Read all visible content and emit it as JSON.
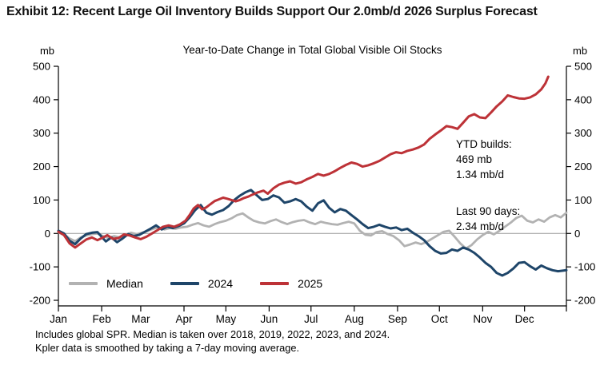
{
  "exhibit_title": "Exhibit 12: Recent Large Oil Inventory Builds Support Our 2.0mb/d 2026 Surplus Forecast",
  "chart": {
    "title": "Year-to-Date Change in Total Global Visible Oil Stocks",
    "unit_left": "mb",
    "unit_right": "mb",
    "annotation": {
      "ytd": "YTD builds:\n469 mb\n1.34 mb/d",
      "last90": "Last 90 days:\n2.34 mb/d"
    },
    "footnote_line1": "Includes global SPR. Median is taken over 2018, 2019, 2022, 2023, and 2024.",
    "footnote_line2": "Kpler data is smoothed by taking a 7-day moving average."
  },
  "chart_data": {
    "type": "line",
    "title": "Year-to-Date Change in Total Global Visible Oil Stocks",
    "xlabel": "",
    "ylabel": "mb",
    "ylim": [
      -200,
      500
    ],
    "yticks": [
      500,
      400,
      300,
      200,
      100,
      0,
      -100,
      -200
    ],
    "grid": "zero-line-only",
    "legend_position": "inside-bottom-left",
    "x_axis": {
      "unit": "day-of-year",
      "range": [
        1,
        365
      ],
      "months": [
        {
          "label": "Jan",
          "day": 1
        },
        {
          "label": "Feb",
          "day": 32
        },
        {
          "label": "Mar",
          "day": 60
        },
        {
          "label": "Apr",
          "day": 91
        },
        {
          "label": "May",
          "day": 121
        },
        {
          "label": "Jun",
          "day": 152
        },
        {
          "label": "Jul",
          "day": 182
        },
        {
          "label": "Aug",
          "day": 213
        },
        {
          "label": "Sep",
          "day": 244
        },
        {
          "label": "Oct",
          "day": 274
        },
        {
          "label": "Nov",
          "day": 305
        },
        {
          "label": "Dec",
          "day": 335
        }
      ]
    },
    "annotations": [
      "YTD builds: 469 mb (1.34 mb/d)",
      "Last 90 days: 2.34 mb/d"
    ],
    "colors": {
      "axis": "#000000",
      "zero_line": "#9a9a9a",
      "median": "#b2b2b2",
      "y2024": "#1e4569",
      "y2025": "#bd3237"
    },
    "series": [
      {
        "name": "Median",
        "color": "#b2b2b2",
        "points": [
          [
            1,
            3
          ],
          [
            5,
            -3
          ],
          [
            9,
            -15
          ],
          [
            13,
            -23
          ],
          [
            17,
            -12
          ],
          [
            21,
            -6
          ],
          [
            25,
            -2
          ],
          [
            29,
            0
          ],
          [
            33,
            -8
          ],
          [
            37,
            -14
          ],
          [
            41,
            -8
          ],
          [
            45,
            -12
          ],
          [
            49,
            -4
          ],
          [
            53,
            2
          ],
          [
            57,
            -2
          ],
          [
            61,
            2
          ],
          [
            65,
            8
          ],
          [
            69,
            14
          ],
          [
            73,
            18
          ],
          [
            77,
            12
          ],
          [
            81,
            16
          ],
          [
            85,
            14
          ],
          [
            89,
            18
          ],
          [
            93,
            20
          ],
          [
            97,
            26
          ],
          [
            101,
            31
          ],
          [
            105,
            24
          ],
          [
            109,
            20
          ],
          [
            113,
            28
          ],
          [
            117,
            34
          ],
          [
            121,
            38
          ],
          [
            125,
            45
          ],
          [
            129,
            55
          ],
          [
            133,
            60
          ],
          [
            137,
            48
          ],
          [
            141,
            38
          ],
          [
            145,
            33
          ],
          [
            149,
            30
          ],
          [
            153,
            37
          ],
          [
            157,
            42
          ],
          [
            161,
            34
          ],
          [
            165,
            28
          ],
          [
            169,
            34
          ],
          [
            173,
            38
          ],
          [
            177,
            40
          ],
          [
            181,
            33
          ],
          [
            185,
            28
          ],
          [
            189,
            35
          ],
          [
            193,
            31
          ],
          [
            197,
            28
          ],
          [
            201,
            26
          ],
          [
            205,
            31
          ],
          [
            209,
            35
          ],
          [
            213,
            30
          ],
          [
            217,
            8
          ],
          [
            221,
            -4
          ],
          [
            225,
            -6
          ],
          [
            229,
            4
          ],
          [
            233,
            7
          ],
          [
            237,
            -2
          ],
          [
            241,
            -8
          ],
          [
            245,
            -20
          ],
          [
            249,
            -38
          ],
          [
            253,
            -33
          ],
          [
            257,
            -27
          ],
          [
            261,
            -32
          ],
          [
            265,
            -25
          ],
          [
            269,
            -15
          ],
          [
            273,
            -5
          ],
          [
            277,
            5
          ],
          [
            281,
            8
          ],
          [
            285,
            -10
          ],
          [
            289,
            -30
          ],
          [
            293,
            -45
          ],
          [
            297,
            -35
          ],
          [
            301,
            -18
          ],
          [
            305,
            -5
          ],
          [
            309,
            5
          ],
          [
            313,
            -3
          ],
          [
            317,
            8
          ],
          [
            321,
            20
          ],
          [
            325,
            32
          ],
          [
            329,
            46
          ],
          [
            333,
            53
          ],
          [
            337,
            38
          ],
          [
            341,
            33
          ],
          [
            345,
            42
          ],
          [
            349,
            35
          ],
          [
            353,
            48
          ],
          [
            357,
            55
          ],
          [
            361,
            48
          ],
          [
            365,
            62
          ]
        ]
      },
      {
        "name": "2024",
        "color": "#1e4569",
        "points": [
          [
            1,
            8
          ],
          [
            5,
            0
          ],
          [
            9,
            -22
          ],
          [
            13,
            -32
          ],
          [
            17,
            -15
          ],
          [
            21,
            -2
          ],
          [
            25,
            2
          ],
          [
            29,
            4
          ],
          [
            32,
            -10
          ],
          [
            35,
            -24
          ],
          [
            39,
            -12
          ],
          [
            43,
            -26
          ],
          [
            47,
            -15
          ],
          [
            51,
            -2
          ],
          [
            55,
            -8
          ],
          [
            59,
            -4
          ],
          [
            63,
            5
          ],
          [
            67,
            14
          ],
          [
            71,
            24
          ],
          [
            75,
            12
          ],
          [
            79,
            20
          ],
          [
            83,
            16
          ],
          [
            87,
            22
          ],
          [
            91,
            30
          ],
          [
            95,
            48
          ],
          [
            99,
            70
          ],
          [
            103,
            85
          ],
          [
            107,
            62
          ],
          [
            111,
            56
          ],
          [
            115,
            64
          ],
          [
            119,
            70
          ],
          [
            123,
            82
          ],
          [
            127,
            100
          ],
          [
            131,
            113
          ],
          [
            135,
            123
          ],
          [
            139,
            130
          ],
          [
            143,
            115
          ],
          [
            147,
            100
          ],
          [
            151,
            103
          ],
          [
            155,
            114
          ],
          [
            159,
            108
          ],
          [
            163,
            92
          ],
          [
            167,
            96
          ],
          [
            171,
            103
          ],
          [
            175,
            96
          ],
          [
            179,
            80
          ],
          [
            183,
            68
          ],
          [
            187,
            90
          ],
          [
            191,
            99
          ],
          [
            195,
            77
          ],
          [
            199,
            63
          ],
          [
            203,
            73
          ],
          [
            207,
            68
          ],
          [
            211,
            55
          ],
          [
            215,
            42
          ],
          [
            219,
            28
          ],
          [
            223,
            16
          ],
          [
            227,
            20
          ],
          [
            231,
            26
          ],
          [
            235,
            20
          ],
          [
            239,
            15
          ],
          [
            243,
            18
          ],
          [
            247,
            10
          ],
          [
            251,
            14
          ],
          [
            255,
            2
          ],
          [
            259,
            -8
          ],
          [
            263,
            -20
          ],
          [
            267,
            -38
          ],
          [
            271,
            -52
          ],
          [
            275,
            -60
          ],
          [
            279,
            -58
          ],
          [
            283,
            -48
          ],
          [
            287,
            -52
          ],
          [
            291,
            -42
          ],
          [
            295,
            -48
          ],
          [
            299,
            -58
          ],
          [
            303,
            -72
          ],
          [
            307,
            -88
          ],
          [
            311,
            -100
          ],
          [
            315,
            -118
          ],
          [
            319,
            -126
          ],
          [
            323,
            -118
          ],
          [
            327,
            -105
          ],
          [
            331,
            -88
          ],
          [
            335,
            -86
          ],
          [
            339,
            -98
          ],
          [
            343,
            -108
          ],
          [
            347,
            -96
          ],
          [
            351,
            -104
          ],
          [
            355,
            -110
          ],
          [
            359,
            -113
          ],
          [
            363,
            -111
          ],
          [
            365,
            -110
          ]
        ]
      },
      {
        "name": "2025",
        "color": "#bd3237",
        "points": [
          [
            1,
            5
          ],
          [
            5,
            -5
          ],
          [
            9,
            -30
          ],
          [
            13,
            -42
          ],
          [
            17,
            -30
          ],
          [
            21,
            -18
          ],
          [
            25,
            -12
          ],
          [
            29,
            -20
          ],
          [
            33,
            -12
          ],
          [
            36,
            -5
          ],
          [
            40,
            -16
          ],
          [
            44,
            -14
          ],
          [
            48,
            -3
          ],
          [
            52,
            -6
          ],
          [
            56,
            -12
          ],
          [
            60,
            -17
          ],
          [
            64,
            -10
          ],
          [
            68,
            0
          ],
          [
            72,
            10
          ],
          [
            76,
            20
          ],
          [
            80,
            24
          ],
          [
            84,
            20
          ],
          [
            88,
            27
          ],
          [
            92,
            38
          ],
          [
            95,
            55
          ],
          [
            98,
            75
          ],
          [
            101,
            85
          ],
          [
            104,
            72
          ],
          [
            107,
            78
          ],
          [
            110,
            88
          ],
          [
            113,
            97
          ],
          [
            116,
            102
          ],
          [
            119,
            107
          ],
          [
            122,
            104
          ],
          [
            125,
            100
          ],
          [
            128,
            96
          ],
          [
            131,
            100
          ],
          [
            134,
            106
          ],
          [
            137,
            110
          ],
          [
            140,
            116
          ],
          [
            144,
            123
          ],
          [
            148,
            128
          ],
          [
            151,
            119
          ],
          [
            155,
            135
          ],
          [
            159,
            146
          ],
          [
            163,
            152
          ],
          [
            167,
            156
          ],
          [
            171,
            149
          ],
          [
            175,
            153
          ],
          [
            179,
            162
          ],
          [
            183,
            169
          ],
          [
            187,
            178
          ],
          [
            191,
            173
          ],
          [
            195,
            178
          ],
          [
            199,
            186
          ],
          [
            203,
            196
          ],
          [
            207,
            205
          ],
          [
            211,
            212
          ],
          [
            215,
            208
          ],
          [
            219,
            200
          ],
          [
            223,
            204
          ],
          [
            227,
            210
          ],
          [
            231,
            217
          ],
          [
            235,
            227
          ],
          [
            239,
            237
          ],
          [
            243,
            243
          ],
          [
            247,
            240
          ],
          [
            251,
            247
          ],
          [
            255,
            251
          ],
          [
            259,
            257
          ],
          [
            263,
            266
          ],
          [
            267,
            283
          ],
          [
            271,
            296
          ],
          [
            275,
            308
          ],
          [
            279,
            321
          ],
          [
            283,
            318
          ],
          [
            287,
            313
          ],
          [
            291,
            331
          ],
          [
            295,
            350
          ],
          [
            299,
            357
          ],
          [
            303,
            347
          ],
          [
            307,
            345
          ],
          [
            311,
            362
          ],
          [
            315,
            380
          ],
          [
            319,
            395
          ],
          [
            323,
            413
          ],
          [
            327,
            408
          ],
          [
            331,
            404
          ],
          [
            335,
            403
          ],
          [
            339,
            407
          ],
          [
            343,
            416
          ],
          [
            347,
            431
          ],
          [
            350,
            449
          ],
          [
            352,
            469
          ]
        ]
      }
    ]
  }
}
